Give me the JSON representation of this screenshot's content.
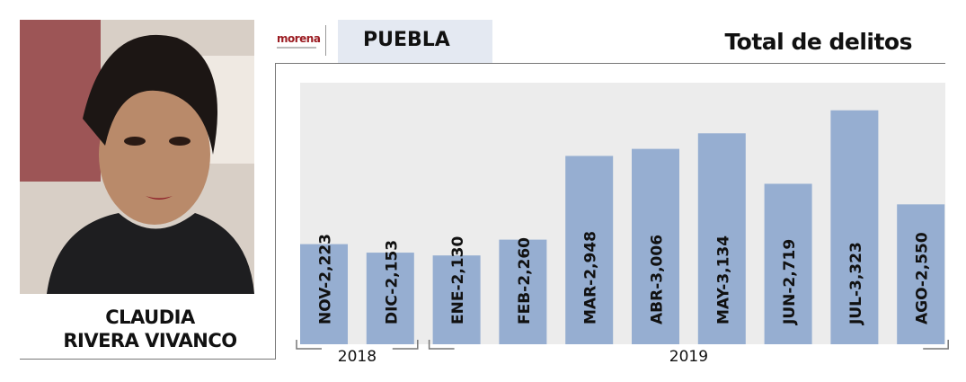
{
  "person": {
    "line1": "CLAUDIA",
    "line2": "RIVERA VIVANCO"
  },
  "party": {
    "name": "morena"
  },
  "header": {
    "state": "PUEBLA",
    "title": "Total de delitos"
  },
  "colors": {
    "bar": "#96aed1",
    "plot_bg": "#ececec",
    "state_bg": "#e4e9f2",
    "party": "#9b1c22"
  },
  "chart_data": {
    "type": "bar",
    "title": "Total de delitos",
    "categories": [
      "NOV",
      "DIC",
      "ENE",
      "FEB",
      "MAR",
      "ABR",
      "MAY",
      "JUN",
      "JUL",
      "AGO"
    ],
    "values": [
      2223,
      2153,
      2130,
      2260,
      2948,
      3006,
      3134,
      2719,
      3323,
      2550
    ],
    "labels": [
      "NOV-2,223",
      "DIC-2,153",
      "ENE-2,130",
      "FEB-2,260",
      "MAR-2,948",
      "ABR-3,006",
      "MAY-3,134",
      "JUN-2,719",
      "JUL-3,323",
      "AGO-2,550"
    ],
    "groups": [
      {
        "label": "2018",
        "start": 0,
        "end": 1
      },
      {
        "label": "2019",
        "start": 2,
        "end": 9
      }
    ],
    "ylim": [
      1400,
      3550
    ],
    "grid": false,
    "legend": "none"
  }
}
